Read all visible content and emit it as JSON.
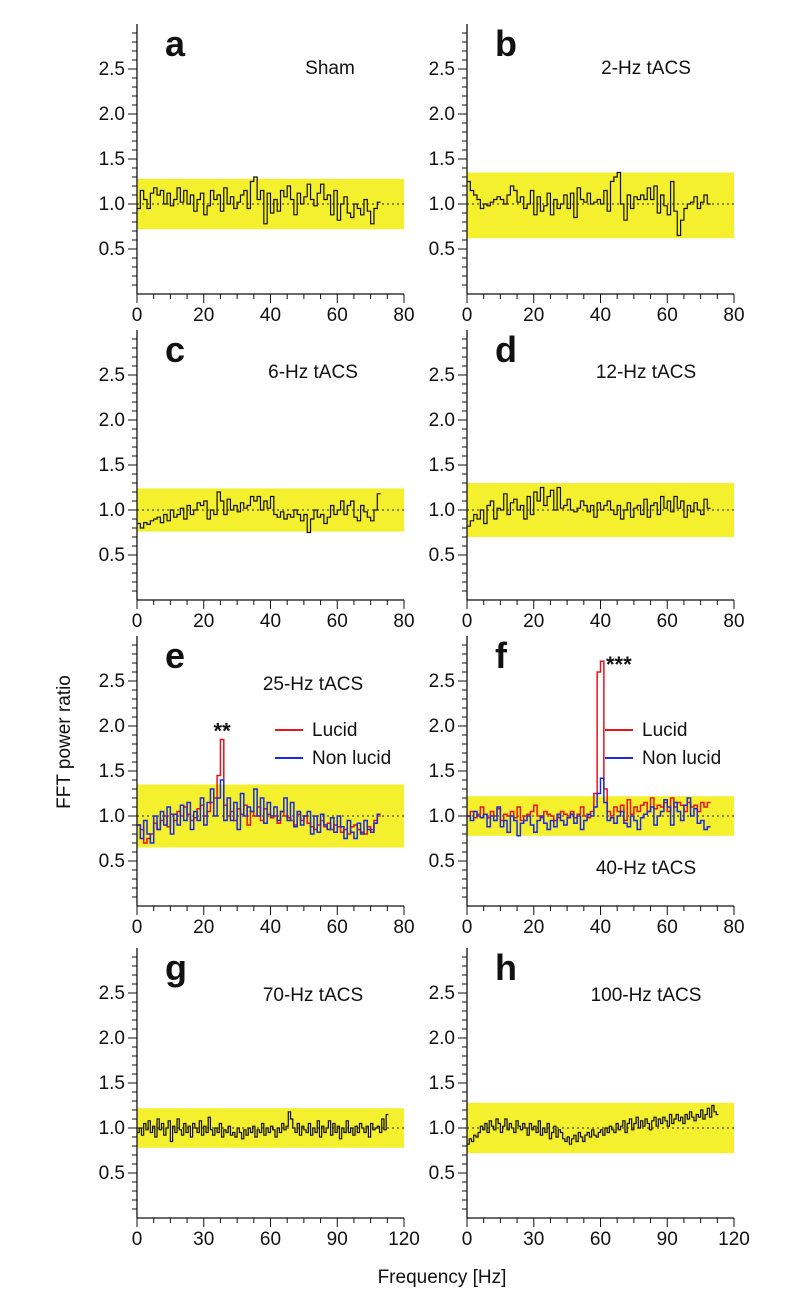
{
  "figure": {
    "ylabel": "FFT power ratio",
    "xlabel": "Frequency [Hz]",
    "colors": {
      "band": "#f5f02e",
      "lucid": "#e8141e",
      "nonlucid": "#1a2be0",
      "single": "#111111"
    }
  },
  "chart_data": [
    {
      "panel": "a",
      "label": "Sham",
      "type": "line",
      "xlim": [
        0,
        80
      ],
      "ylim": [
        0,
        3
      ],
      "xticks": [
        0,
        20,
        40,
        60,
        80
      ],
      "yticks": [
        0.5,
        1.0,
        1.5,
        2.0,
        2.5
      ],
      "band": [
        0.72,
        1.28
      ],
      "series": [
        {
          "x0": 0,
          "dx": 1,
          "values": [
            0.95,
            1.15,
            1.05,
            0.95,
            1.12,
            1.18,
            1.1,
            1.15,
            1.0,
            1.12,
            0.98,
            1.05,
            1.18,
            1.02,
            1.15,
            1.0,
            1.1,
            0.92,
            1.05,
            1.12,
            0.88,
            0.98,
            1.15,
            1.05,
            1.1,
            0.92,
            1.18,
            1.0,
            1.08,
            0.95,
            1.02,
            1.1,
            1.15,
            0.95,
            1.25,
            1.3,
            1.05,
            1.15,
            0.78,
            1.12,
            0.9,
            1.05,
            0.92,
            1.15,
            1.08,
            1.2,
            1.05,
            0.88,
            1.12,
            1.0,
            1.08,
            1.22,
            1.05,
            0.98,
            1.12,
            1.22,
            1.05,
            1.1,
            0.88,
            1.15,
            0.82,
            1.0,
            1.08,
            0.9,
            0.85,
            1.0,
            0.95,
            0.88,
            1.05,
            0.92,
            0.78,
            0.95,
            1.02
          ]
        }
      ]
    },
    {
      "panel": "b",
      "label": "2-Hz  tACS",
      "type": "line",
      "xlim": [
        0,
        80
      ],
      "ylim": [
        0,
        3
      ],
      "xticks": [
        0,
        20,
        40,
        60,
        80
      ],
      "yticks": [
        0.5,
        1.0,
        1.5,
        2.0,
        2.5
      ],
      "band": [
        0.62,
        1.35
      ],
      "series": [
        {
          "x0": 0,
          "dx": 1,
          "values": [
            1.25,
            1.15,
            1.1,
            1.05,
            0.95,
            1.0,
            0.98,
            1.02,
            1.05,
            1.08,
            1.05,
            1.0,
            1.1,
            1.2,
            1.15,
            1.02,
            1.08,
            0.95,
            1.0,
            1.15,
            0.88,
            1.08,
            0.92,
            0.98,
            1.12,
            0.88,
            1.05,
            0.95,
            1.0,
            1.1,
            0.95,
            1.12,
            0.85,
            1.18,
            1.05,
            1.02,
            1.12,
            1.0,
            1.02,
            1.05,
            1.0,
            1.15,
            0.92,
            1.25,
            1.3,
            1.35,
            1.0,
            0.82,
            1.1,
            0.95,
            1.08,
            1.05,
            1.1,
            1.05,
            1.18,
            1.05,
            1.2,
            0.9,
            1.1,
            0.98,
            0.88,
            1.25,
            0.92,
            0.65,
            0.82,
            0.95,
            1.0,
            1.02,
            1.08,
            0.95,
            1.02,
            1.1,
            1.0
          ]
        }
      ]
    },
    {
      "panel": "c",
      "label": "6-Hz  tACS",
      "type": "line",
      "xlim": [
        0,
        80
      ],
      "ylim": [
        0,
        3
      ],
      "xticks": [
        0,
        20,
        40,
        60,
        80
      ],
      "yticks": [
        0.5,
        1.0,
        1.5,
        2.0,
        2.5
      ],
      "band": [
        0.76,
        1.24
      ],
      "series": [
        {
          "x0": 0,
          "dx": 1,
          "values": [
            0.85,
            0.8,
            0.86,
            0.84,
            0.88,
            0.9,
            0.92,
            0.86,
            0.95,
            0.88,
            1.0,
            0.92,
            0.95,
            1.02,
            0.9,
            1.05,
            0.95,
            1.0,
            1.08,
            1.05,
            1.1,
            0.9,
            1.0,
            0.95,
            1.2,
            1.1,
            0.95,
            1.12,
            1.0,
            1.05,
            0.98,
            1.08,
            1.02,
            1.05,
            1.15,
            1.1,
            1.15,
            1.0,
            1.1,
            1.02,
            1.15,
            0.95,
            0.92,
            0.98,
            0.9,
            0.95,
            0.92,
            1.0,
            0.95,
            0.88,
            0.95,
            0.75,
            0.9,
            1.0,
            0.92,
            0.95,
            0.85,
            0.92,
            1.05,
            0.95,
            1.0,
            1.1,
            0.95,
            1.05,
            1.1,
            0.92,
            0.88,
            1.05,
            0.98,
            0.92,
            0.88,
            1.0,
            1.18
          ]
        }
      ]
    },
    {
      "panel": "d",
      "label": "12-Hz  tACS",
      "type": "line",
      "xlim": [
        0,
        80
      ],
      "ylim": [
        0,
        3
      ],
      "xticks": [
        0,
        20,
        40,
        60,
        80
      ],
      "yticks": [
        0.5,
        1.0,
        1.5,
        2.0,
        2.5
      ],
      "band": [
        0.7,
        1.3
      ],
      "series": [
        {
          "x0": 0,
          "dx": 1,
          "values": [
            0.82,
            0.88,
            0.95,
            0.9,
            1.0,
            0.85,
            1.05,
            1.1,
            0.9,
            1.02,
            1.0,
            1.18,
            0.95,
            1.08,
            1.12,
            1.0,
            1.05,
            0.9,
            1.15,
            0.95,
            1.2,
            1.1,
            1.25,
            1.05,
            1.15,
            1.22,
            1.0,
            1.25,
            1.02,
            1.05,
            1.12,
            1.0,
            0.98,
            1.02,
            1.1,
            1.05,
            0.98,
            1.05,
            0.92,
            1.08,
            1.0,
            1.05,
            1.1,
            1.0,
            0.95,
            1.05,
            0.9,
            1.0,
            1.08,
            0.92,
            1.02,
            1.05,
            0.95,
            1.12,
            0.92,
            1.05,
            1.08,
            0.95,
            1.15,
            1.02,
            1.1,
            0.98,
            1.15,
            1.02,
            1.1,
            0.92,
            1.05,
            0.98,
            1.08,
            1.0,
            0.95,
            1.12,
            1.02
          ]
        }
      ]
    },
    {
      "panel": "e",
      "label": "25-Hz  tACS",
      "type": "line",
      "xlim": [
        0,
        80
      ],
      "ylim": [
        0,
        3
      ],
      "xticks": [
        0,
        20,
        40,
        60,
        80
      ],
      "yticks": [
        0.5,
        1.0,
        1.5,
        2.0,
        2.5
      ],
      "band": [
        0.65,
        1.35
      ],
      "annotation": {
        "text": "**",
        "x": 25.5,
        "y": 1.86
      },
      "legend": {
        "position": "right",
        "entries": [
          "Lucid",
          "Non lucid"
        ]
      },
      "series": [
        {
          "name": "Lucid",
          "x0": 0,
          "dx": 1,
          "values": [
            0.9,
            0.85,
            0.7,
            0.75,
            0.8,
            0.92,
            0.85,
            0.95,
            1.0,
            0.88,
            1.02,
            0.95,
            1.05,
            1.0,
            1.1,
            1.02,
            0.95,
            0.98,
            1.08,
            1.12,
            1.0,
            1.05,
            1.15,
            1.2,
            1.45,
            1.85,
            1.12,
            1.0,
            1.05,
            0.95,
            1.08,
            1.02,
            1.12,
            0.9,
            1.05,
            1.0,
            1.1,
            0.95,
            1.08,
            1.02,
            0.98,
            1.0,
            0.92,
            1.05,
            1.0,
            0.98,
            0.95,
            0.9,
            1.02,
            0.95,
            1.0,
            0.92,
            0.88,
            0.85,
            0.9,
            0.95,
            0.88,
            0.92,
            0.85,
            0.9,
            0.88,
            0.82,
            0.85,
            0.8,
            0.88,
            0.9,
            0.85,
            0.82,
            0.8,
            0.88,
            0.85,
            0.95,
            1.0
          ]
        },
        {
          "name": "Non lucid",
          "x0": 0,
          "dx": 1,
          "values": [
            0.9,
            0.75,
            0.95,
            0.8,
            0.7,
            1.0,
            0.85,
            1.05,
            0.9,
            1.1,
            0.8,
            1.02,
            0.9,
            1.12,
            0.95,
            1.15,
            0.85,
            1.05,
            0.95,
            1.2,
            0.9,
            1.15,
            1.3,
            1.0,
            1.2,
            1.4,
            0.95,
            1.2,
            0.95,
            1.15,
            0.85,
            1.25,
            1.0,
            1.1,
            1.05,
            1.3,
            1.0,
            1.2,
            0.92,
            1.15,
            1.0,
            1.1,
            0.95,
            1.05,
            1.2,
            0.95,
            1.15,
            0.88,
            1.05,
            0.9,
            1.0,
            1.05,
            0.8,
            1.0,
            0.82,
            1.02,
            0.9,
            0.85,
            0.98,
            0.82,
            1.0,
            0.88,
            0.75,
            0.95,
            0.82,
            0.75,
            0.92,
            0.8,
            0.95,
            0.85,
            0.82,
            0.92,
            1.02
          ]
        }
      ]
    },
    {
      "panel": "f",
      "label": "40-Hz  tACS",
      "type": "line",
      "xlim": [
        0,
        80
      ],
      "ylim": [
        0,
        3
      ],
      "xticks": [
        0,
        20,
        40,
        60,
        80
      ],
      "yticks": [
        0.5,
        1.0,
        1.5,
        2.0,
        2.5
      ],
      "band": [
        0.78,
        1.22
      ],
      "annotation": {
        "text": "***",
        "x": 45.5,
        "y": 2.6
      },
      "legend": {
        "position": "right",
        "entries": [
          "Lucid",
          "Non lucid"
        ]
      },
      "series": [
        {
          "name": "Lucid",
          "x0": 0,
          "dx": 1,
          "values": [
            1.0,
            1.05,
            0.98,
            1.02,
            1.1,
            1.02,
            0.98,
            1.05,
            1.0,
            1.08,
            0.95,
            1.02,
            1.0,
            1.05,
            0.98,
            1.1,
            0.95,
            1.0,
            1.02,
            1.05,
            1.12,
            1.0,
            0.98,
            1.05,
            1.02,
            1.0,
            0.95,
            0.98,
            1.05,
            1.02,
            1.0,
            1.05,
            0.98,
            1.02,
            1.1,
            1.0,
            0.98,
            1.05,
            1.25,
            2.6,
            2.72,
            1.3,
            1.05,
            1.0,
            1.1,
            1.05,
            1.12,
            0.95,
            1.18,
            1.02,
            1.1,
            1.05,
            1.12,
            1.15,
            1.05,
            1.2,
            1.08,
            1.12,
            1.1,
            1.15,
            1.05,
            1.2,
            1.1,
            1.15,
            1.12,
            1.05,
            1.15,
            1.1,
            1.12,
            1.05,
            1.15,
            1.1,
            1.15
          ]
        },
        {
          "name": "Non lucid",
          "x0": 0,
          "dx": 1,
          "values": [
            1.0,
            0.95,
            1.05,
            1.0,
            0.98,
            1.02,
            0.88,
            1.0,
            0.95,
            1.1,
            0.88,
            0.95,
            0.82,
            1.0,
            0.95,
            0.78,
            0.92,
            0.95,
            1.0,
            0.9,
            0.82,
            0.95,
            1.0,
            0.92,
            0.85,
            0.95,
            0.88,
            1.02,
            0.95,
            0.9,
            0.98,
            1.02,
            0.92,
            1.0,
            0.85,
            0.95,
            1.02,
            1.0,
            1.1,
            1.25,
            1.42,
            1.15,
            0.95,
            0.98,
            0.92,
            1.0,
            1.05,
            0.92,
            0.88,
            1.0,
            0.95,
            0.85,
            0.98,
            1.02,
            1.05,
            1.1,
            0.9,
            1.0,
            1.05,
            1.18,
            1.1,
            0.9,
            1.15,
            1.05,
            0.95,
            1.12,
            1.2,
            1.0,
            1.08,
            0.92,
            0.95,
            0.85,
            0.88
          ]
        }
      ]
    },
    {
      "panel": "g",
      "label": "70-Hz  tACS",
      "type": "line",
      "xlim": [
        0,
        120
      ],
      "ylim": [
        0,
        3
      ],
      "xticks": [
        0,
        30,
        60,
        90,
        120
      ],
      "yticks": [
        0.5,
        1.0,
        1.5,
        2.0,
        2.5
      ],
      "band": [
        0.78,
        1.22
      ],
      "series": [
        {
          "x0": 0,
          "dx": 1,
          "values": [
            0.95,
            1.0,
            0.92,
            1.05,
            0.98,
            1.08,
            0.95,
            1.02,
            0.9,
            1.1,
            0.98,
            1.05,
            0.92,
            1.0,
            1.08,
            0.85,
            1.02,
            0.95,
            1.1,
            0.98,
            0.92,
            1.05,
            0.95,
            1.02,
            0.9,
            1.05,
            1.0,
            0.95,
            1.08,
            0.92,
            1.02,
            0.95,
            1.12,
            0.98,
            0.92,
            1.0,
            0.95,
            1.05,
            0.9,
            0.98,
            0.95,
            1.02,
            0.92,
            0.95,
            0.9,
            1.0,
            0.95,
            0.88,
            0.98,
            0.92,
            1.0,
            0.95,
            1.02,
            0.9,
            0.98,
            0.95,
            1.05,
            0.92,
            1.0,
            0.95,
            1.02,
            0.98,
            0.9,
            1.0,
            0.95,
            1.05,
            0.98,
            1.02,
            1.18,
            1.1,
            1.0,
            0.95,
            1.05,
            0.92,
            1.02,
            0.98,
            0.95,
            1.05,
            0.92,
            1.0,
            0.95,
            1.08,
            0.9,
            1.02,
            0.95,
            1.0,
            1.08,
            0.92,
            1.05,
            0.95,
            1.02,
            0.88,
            1.0,
            0.95,
            1.08,
            0.95,
            1.0,
            0.92,
            1.02,
            0.95,
            1.05,
            1.0,
            0.95,
            1.02,
            0.9,
            1.05,
            0.98,
            1.0,
            1.02,
            0.95,
            1.1,
            0.98,
            1.15
          ]
        }
      ]
    },
    {
      "panel": "h",
      "label": "100-Hz  tACS",
      "type": "line",
      "xlim": [
        0,
        120
      ],
      "ylim": [
        0,
        3
      ],
      "xticks": [
        0,
        30,
        60,
        90,
        120
      ],
      "yticks": [
        0.5,
        1.0,
        1.5,
        2.0,
        2.5
      ],
      "band": [
        0.72,
        1.28
      ],
      "series": [
        {
          "x0": 0,
          "dx": 1,
          "values": [
            0.82,
            0.88,
            0.85,
            0.92,
            0.9,
            0.95,
            1.02,
            0.98,
            1.05,
            0.95,
            1.08,
            1.02,
            0.98,
            1.1,
            1.05,
            0.95,
            1.02,
            1.1,
            0.98,
            1.05,
            1.0,
            0.95,
            1.08,
            1.02,
            0.98,
            1.05,
            1.0,
            0.92,
            1.05,
            0.98,
            1.02,
            0.95,
            1.08,
            0.92,
            1.0,
            0.95,
            1.05,
            0.88,
            0.95,
            1.02,
            0.9,
            0.98,
            0.95,
            0.88,
            0.85,
            0.9,
            0.82,
            0.88,
            0.92,
            0.85,
            0.95,
            0.9,
            0.85,
            0.92,
            0.95,
            0.9,
            0.98,
            0.92,
            0.9,
            0.95,
            0.98,
            0.92,
            1.0,
            0.95,
            1.02,
            0.98,
            0.95,
            1.05,
            0.98,
            1.02,
            1.08,
            0.95,
            1.05,
            1.1,
            0.98,
            1.05,
            1.12,
            1.0,
            1.08,
            1.02,
            1.1,
            1.05,
            0.98,
            1.08,
            1.12,
            1.02,
            1.1,
            1.05,
            1.12,
            1.08,
            1.02,
            1.15,
            1.05,
            1.1,
            1.15,
            1.08,
            1.12,
            1.05,
            1.15,
            1.1,
            1.18,
            1.12,
            1.08,
            1.15,
            1.12,
            1.2,
            1.1,
            1.15,
            1.22,
            1.12,
            1.25,
            1.18,
            1.15
          ]
        }
      ]
    }
  ]
}
